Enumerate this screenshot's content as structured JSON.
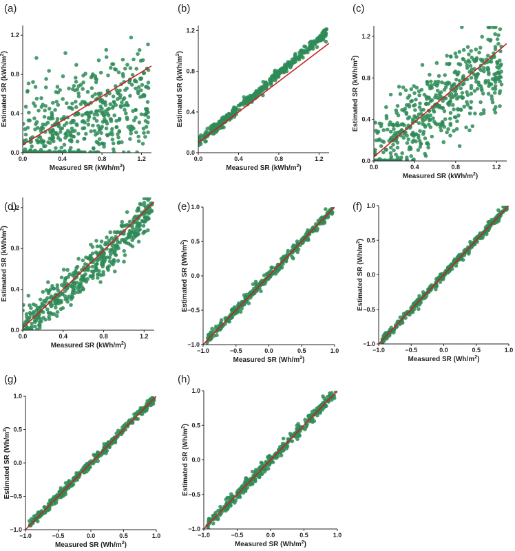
{
  "figure": {
    "point_color": "#2e8b57",
    "line_color": "#cc1f1f"
  },
  "chart_data": [
    {
      "panel": "(a)",
      "type": "scatter",
      "xlabel": "Measured SR (kWh/m",
      "ylabel": "Estimated SR (kWh/m",
      "unit_suffix": ")",
      "superscript": "2",
      "xlim": [
        0,
        1.3
      ],
      "ylim": [
        0,
        1.3
      ],
      "xticks": [
        0.0,
        0.4,
        0.8,
        1.2
      ],
      "xtick_labels": [
        "0.0",
        "0.4",
        "0.8",
        "1.2"
      ],
      "yticks": [
        0.0,
        0.4,
        0.8,
        1.2
      ],
      "ytick_labels": [
        "0.0",
        "0.4",
        "0.8",
        "1.2"
      ],
      "fit_line": {
        "slope": 0.62,
        "intercept": 0.08
      },
      "point_cloud": {
        "x_min": 0.0,
        "x_max": 1.27,
        "slope": 0.45,
        "intercept": 0.05,
        "spread": 0.26,
        "count": 520
      }
    },
    {
      "panel": "(b)",
      "type": "scatter",
      "xlabel": "Measured SR (kWh/m",
      "ylabel": "Estimated SR (kWh/m",
      "unit_suffix": ")",
      "superscript": "2",
      "xlim": [
        0,
        1.3
      ],
      "ylim": [
        0,
        1.25
      ],
      "xticks": [
        0.0,
        0.4,
        0.8,
        1.2
      ],
      "xtick_labels": [
        "0.0",
        "0.4",
        "0.8",
        "1.2"
      ],
      "yticks": [
        0.0,
        0.4,
        0.8,
        1.2
      ],
      "ytick_labels": [
        "0.0",
        "0.4",
        "0.8",
        "1.2"
      ],
      "fit_line": {
        "slope": 0.75,
        "intercept": 0.1
      },
      "point_cloud": {
        "x_min": 0.0,
        "x_max": 1.28,
        "slope": 0.85,
        "intercept": 0.1,
        "spread": 0.025,
        "count": 420
      }
    },
    {
      "panel": "(c)",
      "type": "scatter",
      "xlabel": "Measured SR (kWh/m",
      "ylabel": "Estimated SR (kWh/m",
      "unit_suffix": ")",
      "superscript": "2",
      "xlim": [
        0,
        1.3
      ],
      "ylim": [
        0,
        1.3
      ],
      "xticks": [
        0.0,
        0.4,
        0.8,
        1.2
      ],
      "xtick_labels": [
        "0.0",
        "0.4",
        "0.8",
        "1.2"
      ],
      "yticks": [
        0.0,
        0.4,
        0.8,
        1.2
      ],
      "ytick_labels": [
        "0.0",
        "0.4",
        "0.8",
        "1.2"
      ],
      "fit_line": {
        "slope": 0.84,
        "intercept": 0.04
      },
      "point_cloud": {
        "x_min": 0.0,
        "x_max": 1.25,
        "slope": 0.72,
        "intercept": 0.08,
        "spread": 0.2,
        "count": 520
      }
    },
    {
      "panel": "(d)",
      "type": "scatter",
      "xlabel": "Measured SR (kWh/m",
      "ylabel": "Estimated SR (kWh/m",
      "unit_suffix": ")",
      "superscript": "2",
      "xlim": [
        0,
        1.3
      ],
      "ylim": [
        0,
        1.3
      ],
      "xticks": [
        0.0,
        0.4,
        0.8,
        1.2
      ],
      "xtick_labels": [
        "0.0",
        "0.4",
        "0.8",
        "1.2"
      ],
      "yticks": [
        0.0,
        0.4,
        0.8,
        1.2
      ],
      "ytick_labels": [
        "0.0",
        "0.4",
        "0.8",
        "1.2"
      ],
      "fit_line": {
        "slope": 0.95,
        "intercept": 0.02
      },
      "point_cloud": {
        "x_min": 0.0,
        "x_max": 1.28,
        "slope": 0.88,
        "intercept": 0.03,
        "spread": 0.1,
        "count": 480
      }
    },
    {
      "panel": "(e)",
      "type": "scatter",
      "xlabel": "Measured SR (Wh/m",
      "ylabel": "Estimated SR (Wh/m",
      "unit_suffix": ")",
      "superscript": "2",
      "xlim": [
        -1,
        1
      ],
      "ylim": [
        -1,
        1
      ],
      "xticks": [
        -1.0,
        -0.5,
        0.0,
        0.5,
        1.0
      ],
      "xtick_labels": [
        "−1.0",
        "−0.5",
        "0.0",
        "0.5",
        "1.0"
      ],
      "yticks": [
        -1.0,
        -0.5,
        0.0,
        0.5,
        1.0
      ],
      "ytick_labels": [
        "−1.0",
        "−0.5",
        "0.0",
        "0.5",
        "1.0"
      ],
      "fit_line": {
        "slope": 1.0,
        "intercept": 0.0
      },
      "point_cloud": {
        "x_min": -0.95,
        "x_max": 0.97,
        "slope": 1.0,
        "intercept": 0.0,
        "spread": 0.035,
        "count": 360
      }
    },
    {
      "panel": "(f)",
      "type": "scatter",
      "xlabel": "Measured SR (Wh/m",
      "ylabel": "Estimated SR (Wh/m",
      "unit_suffix": ")",
      "superscript": "2",
      "xlim": [
        -1,
        1
      ],
      "ylim": [
        -1,
        1
      ],
      "xticks": [
        -1.0,
        -0.5,
        0.0,
        0.5,
        1.0
      ],
      "xtick_labels": [
        "−1.0",
        "−0.5",
        "0.0",
        "0.5",
        "1.0"
      ],
      "yticks": [
        -1.0,
        -0.5,
        0.0,
        0.5,
        1.0
      ],
      "ytick_labels": [
        "−1.0",
        "−0.5",
        "0.0",
        "0.5",
        "1.0"
      ],
      "fit_line": {
        "slope": 1.0,
        "intercept": 0.0
      },
      "point_cloud": {
        "x_min": -0.95,
        "x_max": 0.97,
        "slope": 1.0,
        "intercept": 0.0,
        "spread": 0.03,
        "count": 360
      }
    },
    {
      "panel": "(g)",
      "type": "scatter",
      "xlabel": "Measured SR (Wh/m",
      "ylabel": "Estimated SR (Wh/m",
      "unit_suffix": ")",
      "superscript": "2",
      "xlim": [
        -1,
        1
      ],
      "ylim": [
        -1,
        1
      ],
      "xticks": [
        -1.0,
        -0.5,
        0.0,
        0.5,
        1.0
      ],
      "xtick_labels": [
        "−1.0",
        "−0.5",
        "0.0",
        "0.5",
        "1.0"
      ],
      "yticks": [
        -1.0,
        -0.5,
        0.0,
        0.5,
        1.0
      ],
      "ytick_labels": [
        "−1.0",
        "−0.5",
        "0.0",
        "0.5",
        "1.0"
      ],
      "fit_line": {
        "slope": 1.0,
        "intercept": 0.0
      },
      "point_cloud": {
        "x_min": -0.95,
        "x_max": 0.98,
        "slope": 1.0,
        "intercept": 0.0,
        "spread": 0.035,
        "count": 360
      }
    },
    {
      "panel": "(h)",
      "type": "scatter",
      "xlabel": "Measured SR (Wh/m",
      "ylabel": "Estimated SR (Wh/m",
      "unit_suffix": ")",
      "superscript": "2",
      "xlim": [
        -1,
        1
      ],
      "ylim": [
        -1,
        1
      ],
      "xticks": [
        -1.0,
        -0.5,
        0.0,
        0.5,
        1.0
      ],
      "xtick_labels": [
        "−1.0",
        "−0.5",
        "0.0",
        "0.5",
        "1.0"
      ],
      "yticks": [
        -1.0,
        -0.5,
        0.0,
        0.5,
        1.0
      ],
      "ytick_labels": [
        "−1.0",
        "−0.5",
        "0.0",
        "0.5",
        "1.0"
      ],
      "fit_line": {
        "slope": 1.0,
        "intercept": 0.0
      },
      "point_cloud": {
        "x_min": -0.95,
        "x_max": 0.98,
        "slope": 1.0,
        "intercept": 0.0,
        "spread": 0.045,
        "count": 360
      }
    }
  ]
}
